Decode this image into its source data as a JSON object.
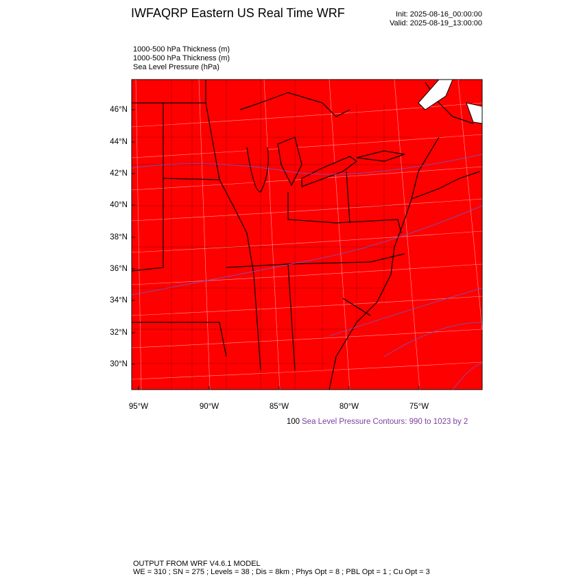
{
  "header": {
    "title": "IWFAQRP Eastern US Real Time WRF",
    "init": "Init: 2025-08-16_00:00:00",
    "valid": "Valid: 2025-08-19_13:00:00"
  },
  "fields": [
    "1000-500 hPa Thickness   (m)",
    "1000-500 hPa Thickness   (m)",
    "Sea Level Pressure   (hPa)"
  ],
  "map": {
    "lat_labels": [
      "46°N",
      "44°N",
      "42°N",
      "40°N",
      "38°N",
      "36°N",
      "34°N",
      "32°N",
      "30°N"
    ],
    "lon_labels": [
      "95°W",
      "90°W",
      "85°W",
      "80°W",
      "75°W"
    ]
  },
  "contour_note": {
    "prefix": "100",
    "text": "Sea Level Pressure Contours: 990 to 1023 by 2"
  },
  "footer": [
    "OUTPUT FROM WRF V4.6.1 MODEL",
    "WE = 310 ; SN = 275 ; Levels = 38 ; Dis = 8km ; Phys Opt = 8 ; PBL Opt = 1 ; Cu Opt = 3"
  ]
}
